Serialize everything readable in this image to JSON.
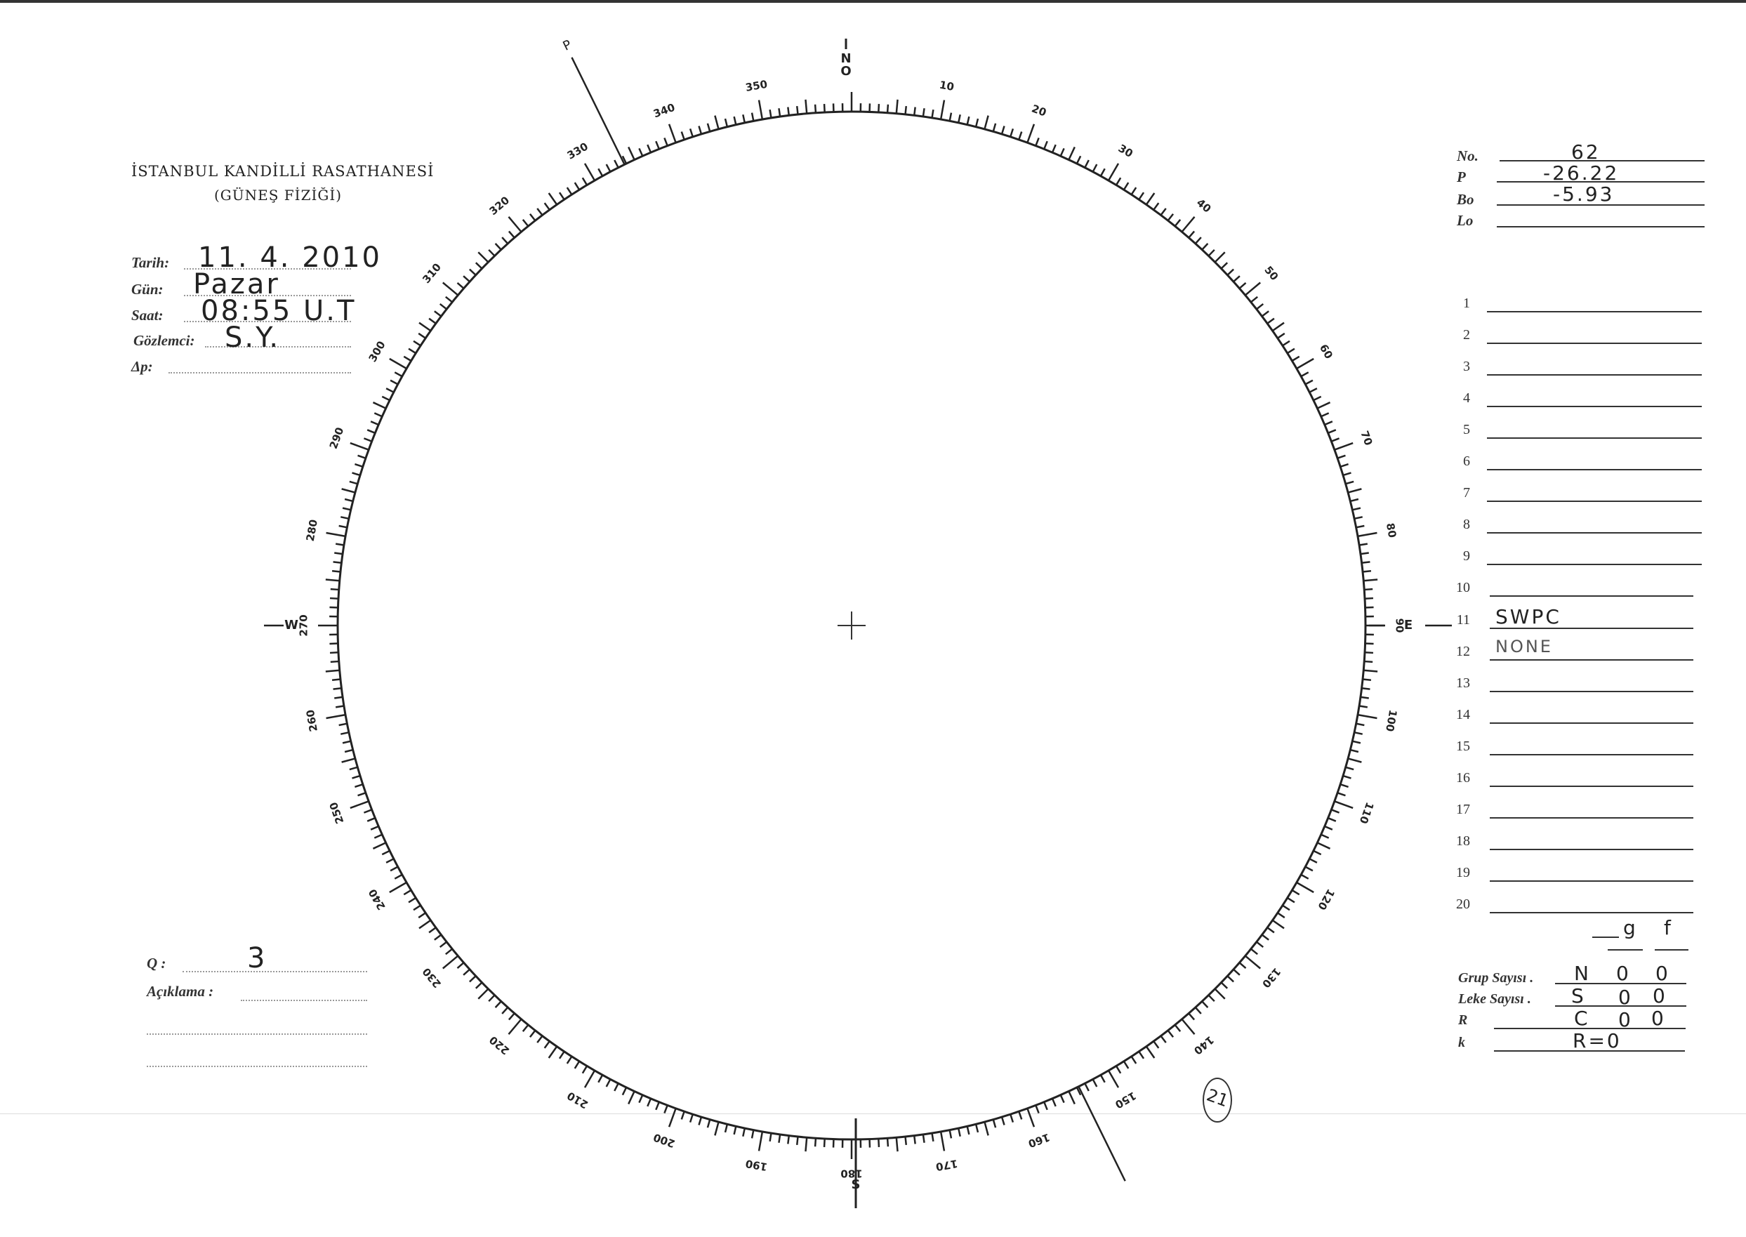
{
  "header": {
    "title": "İSTANBUL KANDİLLİ RASATHANESİ",
    "subtitle": "(GÜNEŞ FİZİĞİ)"
  },
  "observation": {
    "date_label": "Tarih:",
    "date_value": "11. 4. 2010",
    "day_label": "Gün:",
    "day_value": "Pazar",
    "time_label": "Saat:",
    "time_value": "08:55 U.T",
    "observer_label": "Gözlemci:",
    "observer_value": "S.Y.",
    "delta_p_label": "Δp:",
    "delta_p_value": ""
  },
  "quality": {
    "q_label": "Q :",
    "q_value": "3",
    "notes_label": "Açıklama :",
    "notes_value": ""
  },
  "solar_params": {
    "no_label": "No.",
    "no_value": "62",
    "p_label": "P",
    "p_value": "-26.22",
    "bo_label": "Bo",
    "bo_value": "-5.93",
    "lo_label": "Lo",
    "lo_value": ""
  },
  "rows": [
    {
      "num": "1",
      "value": ""
    },
    {
      "num": "2",
      "value": ""
    },
    {
      "num": "3",
      "value": ""
    },
    {
      "num": "4",
      "value": ""
    },
    {
      "num": "5",
      "value": ""
    },
    {
      "num": "6",
      "value": ""
    },
    {
      "num": "7",
      "value": ""
    },
    {
      "num": "8",
      "value": ""
    },
    {
      "num": "9",
      "value": ""
    },
    {
      "num": "10",
      "value": ""
    },
    {
      "num": "11",
      "value": "SWPC"
    },
    {
      "num": "12",
      "value": "NONE"
    },
    {
      "num": "13",
      "value": ""
    },
    {
      "num": "14",
      "value": ""
    },
    {
      "num": "15",
      "value": ""
    },
    {
      "num": "16",
      "value": ""
    },
    {
      "num": "17",
      "value": ""
    },
    {
      "num": "18",
      "value": ""
    },
    {
      "num": "19",
      "value": ""
    },
    {
      "num": "20",
      "value": ""
    }
  ],
  "counts": {
    "col_g": "g",
    "col_f": "f",
    "group_label": "Grup Sayısı .",
    "group_hemi": "N",
    "group_g": "0",
    "group_f": "0",
    "spot_label": "Leke Sayısı .",
    "spot_hemi": "S",
    "spot_g": "0",
    "spot_f": "0",
    "r_label": "R",
    "r_hemi": "C",
    "r_g": "0",
    "r_f": "0",
    "k_label": "k",
    "k_value": "R=0"
  },
  "dial": {
    "north": "N",
    "north_zero": "O",
    "east": "E",
    "south": "S",
    "west": "W",
    "p_marker": "P",
    "labels": [
      "10",
      "20",
      "30",
      "40",
      "50",
      "60",
      "70",
      "80",
      "90",
      "100",
      "110",
      "120",
      "130",
      "140",
      "150",
      "160",
      "170",
      "180",
      "190",
      "200",
      "210",
      "220",
      "230",
      "240",
      "250",
      "260",
      "270",
      "280",
      "290",
      "300",
      "310",
      "320",
      "330",
      "340",
      "350"
    ]
  },
  "annotation": "21",
  "colors": {
    "ink": "#222222",
    "paper": "#ffffff"
  }
}
